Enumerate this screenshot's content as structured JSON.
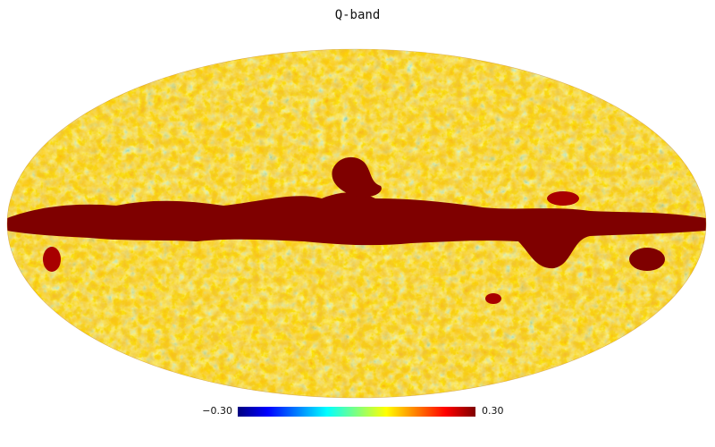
{
  "title": "Q-band",
  "colorbar": {
    "min_label": "−0.30",
    "max_label": "0.30",
    "min_value": -0.3,
    "max_value": 0.3,
    "colormap": [
      "#00007f",
      "#0000ff",
      "#007fff",
      "#00ffff",
      "#7fff7f",
      "#ffff00",
      "#ff7f00",
      "#ff0000",
      "#7f0000"
    ]
  },
  "map": {
    "projection": "mollweide",
    "background_color": "#ffffff",
    "dominant_colors": [
      "#ff8c00",
      "#ffd700",
      "#00bfff",
      "#8b0000"
    ]
  }
}
